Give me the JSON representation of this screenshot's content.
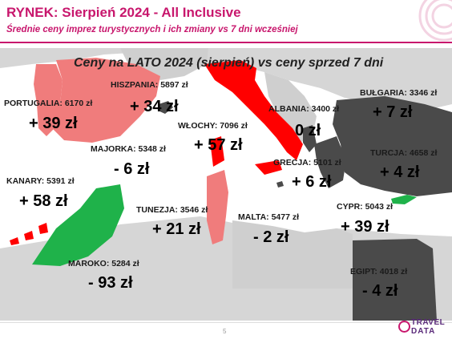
{
  "header": {
    "title": "RYNEK: Sierpień 2024 - All Inclusive",
    "subtitle": "Średnie ceny imprez turystycznych i ich zmiany vs 7 dni wcześniej"
  },
  "map_title": "Ceny na LATO 2024 (sierpień) vs ceny sprzed 7 dni",
  "destinations": {
    "portugalia": {
      "label": "PORTUGALIA:  6170 zł",
      "change": "+ 39 zł"
    },
    "hiszpania": {
      "label": "HISZPANIA: 5897 zł",
      "change": "+ 34 zł"
    },
    "wlochy": {
      "label": "WŁOCHY: 7096 zł",
      "change": "+ 57 zł"
    },
    "albania": {
      "label": "ALBANIA: 3400 zł",
      "change": "0 zł"
    },
    "bulgaria": {
      "label": "BUŁGARIA: 3346 zł",
      "change": "+ 7 zł"
    },
    "majorka": {
      "label": "MAJORKA: 5348 zł",
      "change": "- 6 zł"
    },
    "grecja": {
      "label": "GRECJA: 5101 zł",
      "change": "+ 6 zł"
    },
    "turcja": {
      "label": "TURCJA: 4658 zł",
      "change": "+ 4 zł"
    },
    "kanary": {
      "label": "KANARY: 5391 zł",
      "change": "+ 58 zł"
    },
    "tunezja": {
      "label": "TUNEZJA: 3546 zł",
      "change": "+ 21 zł"
    },
    "malta": {
      "label": "MALTA: 5477 zł",
      "change": "- 2 zł"
    },
    "cypr": {
      "label": "CYPR: 5043 zł",
      "change": "+ 39 zł"
    },
    "maroko": {
      "label": "MAROKO: 5284 zł",
      "change": "- 93 zł"
    },
    "egipt": {
      "label": "EGIPT: 4018 zł",
      "change": "- 4 zł"
    }
  },
  "colors": {
    "accent": "#c8176d",
    "increase_high": "#ff0000",
    "increase": "#f07c7c",
    "decrease": "#1fb24a",
    "small_change": "#4a4a4a",
    "land": "#d4d4d4",
    "sea": "#ffffff"
  },
  "footer": {
    "page_number": "5",
    "logo_line1": "TRAVEL",
    "logo_line2": "DATA"
  }
}
